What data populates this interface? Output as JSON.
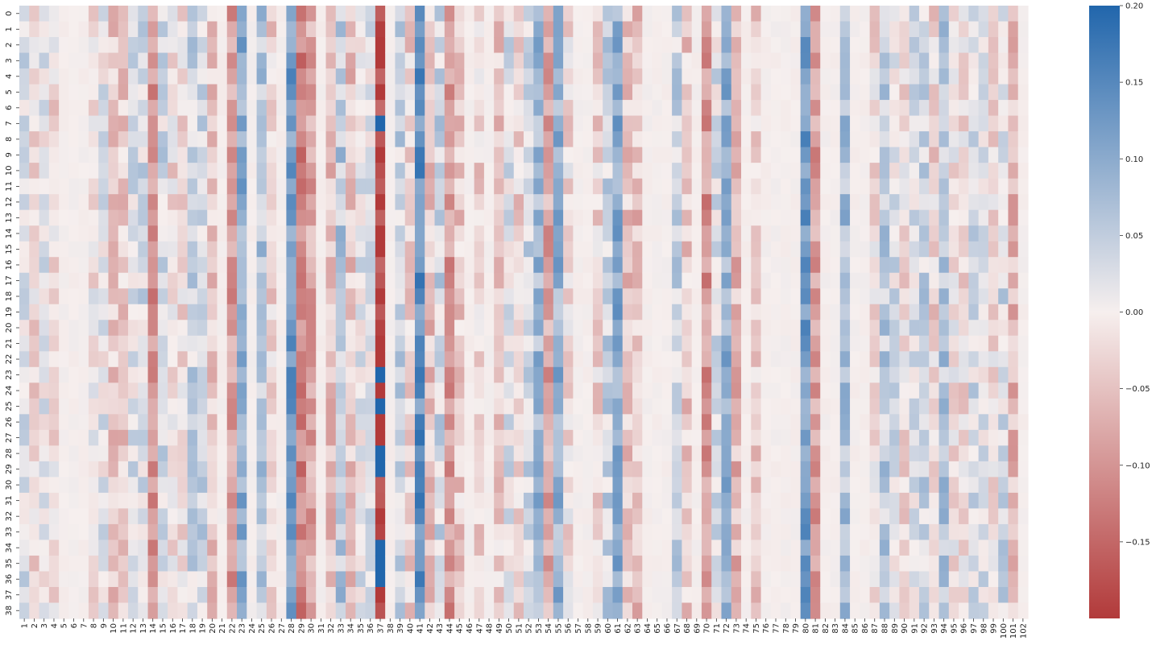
{
  "chart_data": {
    "type": "heatmap",
    "title": "",
    "xlabel": "",
    "ylabel": "",
    "x_labels": [
      "1",
      "2",
      "3",
      "4",
      "5",
      "6",
      "7",
      "8",
      "9",
      "10",
      "11",
      "12",
      "13",
      "14",
      "15",
      "16",
      "17",
      "18",
      "19",
      "20",
      "21",
      "22",
      "23",
      "24",
      "25",
      "26",
      "27",
      "28",
      "29",
      "30",
      "31",
      "32",
      "33",
      "34",
      "35",
      "36",
      "37",
      "38",
      "39",
      "40",
      "41",
      "42",
      "43",
      "44",
      "45",
      "46",
      "47",
      "48",
      "49",
      "50",
      "51",
      "52",
      "53",
      "54",
      "55",
      "56",
      "57",
      "58",
      "59",
      "60",
      "61",
      "62",
      "63",
      "64",
      "65",
      "66",
      "67",
      "68",
      "69",
      "70",
      "71",
      "72",
      "73",
      "74",
      "75",
      "76",
      "77",
      "78",
      "79",
      "80",
      "81",
      "82",
      "83",
      "84",
      "85",
      "86",
      "87",
      "88",
      "89",
      "90",
      "91",
      "92",
      "93",
      "94",
      "95",
      "96",
      "97",
      "98",
      "99",
      "100",
      "101",
      "102"
    ],
    "y_labels": [
      "0",
      "1",
      "2",
      "3",
      "4",
      "5",
      "6",
      "7",
      "8",
      "9",
      "10",
      "11",
      "12",
      "13",
      "14",
      "15",
      "16",
      "17",
      "18",
      "19",
      "20",
      "21",
      "22",
      "23",
      "24",
      "25",
      "26",
      "27",
      "28",
      "29",
      "30",
      "31",
      "32",
      "33",
      "34",
      "35",
      "36",
      "37",
      "38"
    ],
    "column_means": [
      0.02,
      -0.02,
      0.01,
      -0.02,
      0.0,
      0.0,
      0.0,
      -0.01,
      0.01,
      -0.04,
      -0.04,
      0.02,
      0.03,
      -0.1,
      0.03,
      -0.02,
      -0.02,
      0.04,
      0.04,
      -0.04,
      0.0,
      -0.09,
      0.1,
      0.0,
      0.06,
      -0.03,
      0.0,
      0.12,
      -0.12,
      -0.08,
      0.0,
      -0.05,
      0.06,
      -0.05,
      0.01,
      0.02,
      -0.19,
      0.0,
      0.04,
      -0.03,
      0.14,
      -0.05,
      0.04,
      -0.1,
      -0.04,
      0.0,
      -0.03,
      0.0,
      -0.04,
      0.02,
      -0.03,
      0.04,
      0.08,
      -0.08,
      0.09,
      -0.02,
      0.0,
      0.0,
      -0.03,
      0.04,
      0.1,
      -0.05,
      -0.05,
      0.0,
      0.0,
      0.0,
      0.04,
      -0.04,
      0.0,
      -0.1,
      0.02,
      0.09,
      -0.06,
      0.0,
      -0.04,
      0.0,
      0.0,
      0.0,
      0.0,
      0.12,
      -0.09,
      0.0,
      0.0,
      0.07,
      0.0,
      0.0,
      -0.02,
      0.05,
      0.02,
      -0.02,
      0.02,
      0.04,
      -0.03,
      0.06,
      -0.01,
      -0.02,
      0.03,
      0.02,
      -0.02,
      0.03,
      -0.06,
      0.0
    ],
    "special_cells": [
      {
        "col": "37",
        "rows": [
          "7",
          "23",
          "25",
          "28",
          "29",
          "34",
          "35",
          "36"
        ],
        "value": 0.2
      }
    ],
    "value_range": [
      -0.2,
      0.2
    ],
    "colorbar": {
      "colormap": "diverging red-white-blue",
      "low_color": "#b23a3a",
      "mid_color": "#f6efee",
      "high_color": "#2166ac",
      "min": -0.2,
      "max": 0.2,
      "ticks": [
        0.2,
        0.15,
        0.1,
        0.05,
        0.0,
        -0.05,
        -0.1,
        -0.15
      ],
      "tick_labels": [
        "0.20",
        "0.15",
        "0.10",
        "0.05",
        "0.00",
        "−0.05",
        "−0.10",
        "−0.15"
      ]
    },
    "grid": false,
    "legend": "colorbar-right"
  }
}
